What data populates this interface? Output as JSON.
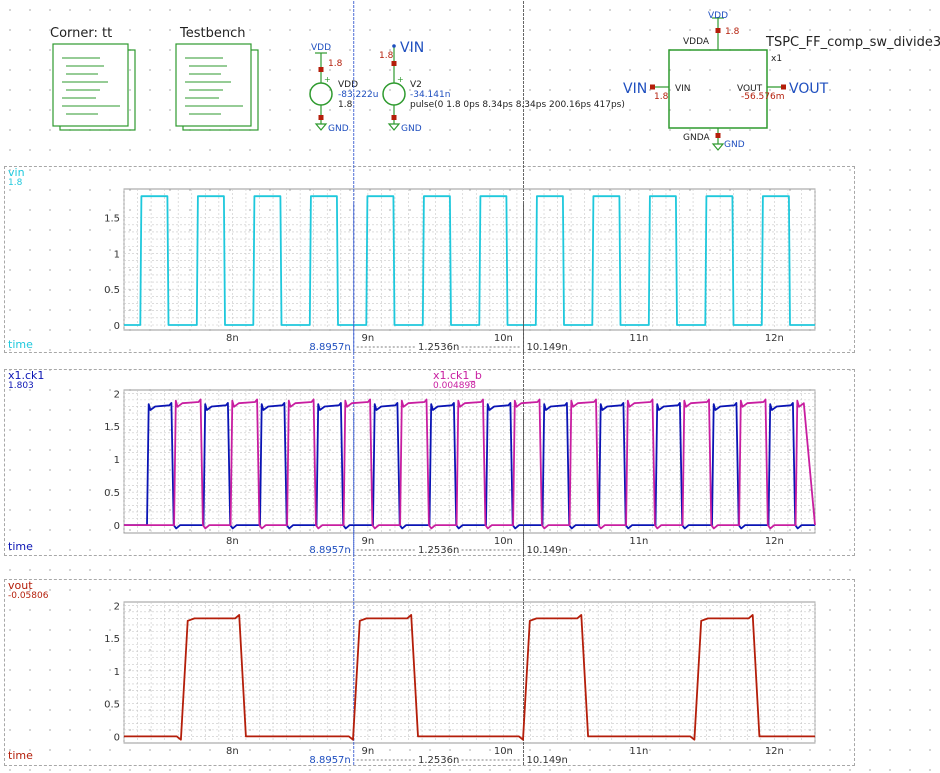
{
  "schematic": {
    "corner_label": "Corner: tt",
    "testbench_label": "Testbench",
    "vdd_source": {
      "net_top": "VDD",
      "value_top": "1.8",
      "name": "VDD",
      "current": "-83.222u",
      "voltage": "1.8",
      "net_bottom": "GND"
    },
    "vin_source": {
      "net_top": "VIN",
      "value_top": "1.8",
      "name": "V2",
      "current": "-34.141n",
      "spec": "pulse(0 1.8 0ps 8.34ps 8.34ps 200.16ps 417ps)",
      "net_bottom": "GND"
    },
    "subckt": {
      "name": "TSPC_FF_comp_sw_divide3",
      "instance": "x1",
      "pin_vdda": "VDDA",
      "pin_vin": "VIN",
      "pin_vout": "VOUT",
      "pin_gnda": "GNDA",
      "net_vdd": "VDD",
      "vdd_value": "1.8",
      "net_vin": "VIN",
      "vin_value": "1.8",
      "net_vout": "VOUT",
      "vout_value": "-56.576m",
      "net_gnd": "GND"
    }
  },
  "colors": {
    "vin": "#1ec8dc",
    "ck1": "#0a14b4",
    "ck1_b": "#c81ea0",
    "vout": "#b41e0a",
    "green": "#2e9a2e",
    "pin": "#b41e0a"
  },
  "cursors": {
    "c1": "8.8957n",
    "c2": "10.149n",
    "delta": "1.2536n"
  },
  "plots": [
    {
      "signals": [
        {
          "name": "vin",
          "value": "1.8",
          "color": "#1ec8dc"
        }
      ],
      "xlabel": "time",
      "xlabel_color": "#1ec8dc",
      "yticks": [
        "0",
        "0.5",
        "1",
        "1.5"
      ],
      "xticks": [
        "8n",
        "9n",
        "10n",
        "11n",
        "12n"
      ]
    },
    {
      "signals": [
        {
          "name": "x1.ck1",
          "value": "1.803",
          "color": "#0a14b4"
        },
        {
          "name": "x1.ck1_b",
          "value": "0.004898",
          "color": "#c81ea0"
        }
      ],
      "xlabel": "time",
      "xlabel_color": "#0a14b4",
      "yticks": [
        "0",
        "0.5",
        "1",
        "1.5",
        "2"
      ],
      "xticks": [
        "8n",
        "9n",
        "10n",
        "11n",
        "12n"
      ]
    },
    {
      "signals": [
        {
          "name": "vout",
          "value": "-0.05806",
          "color": "#b41e0a"
        }
      ],
      "xlabel": "time",
      "xlabel_color": "#b41e0a",
      "yticks": [
        "0",
        "0.5",
        "1",
        "1.5",
        "2"
      ],
      "xticks": [
        "8n",
        "9n",
        "10n",
        "11n",
        "12n"
      ]
    }
  ],
  "chart_data": [
    {
      "type": "line",
      "xunit": "ns",
      "xlim": [
        7.2,
        12.3
      ],
      "ylim": [
        -0.07,
        1.9
      ],
      "series": [
        {
          "name": "vin",
          "kind": "pulse",
          "low": 0,
          "high": 1.8,
          "period": 0.417,
          "first_rise": 7.32,
          "width": 0.2002,
          "edge": 0.00834
        }
      ]
    },
    {
      "type": "line",
      "xunit": "ns",
      "xlim": [
        7.2,
        12.3
      ],
      "ylim": [
        -0.12,
        2.05
      ],
      "series": [
        {
          "name": "x1.ck1",
          "kind": "clock",
          "low": 0,
          "high": 1.8,
          "period": 0.417,
          "first_rise": 7.37,
          "width": 0.185
        },
        {
          "name": "x1.ck1_b",
          "kind": "clock",
          "low": 0,
          "high": 1.85,
          "period": 0.417,
          "first_rise": 7.57,
          "width": 0.2
        }
      ]
    },
    {
      "type": "line",
      "xunit": "ns",
      "xlim": [
        7.2,
        12.3
      ],
      "ylim": [
        -0.1,
        2.05
      ],
      "series": [
        {
          "name": "vout",
          "kind": "pulses",
          "low": 0,
          "high": 1.8,
          "rises": [
            7.62,
            8.89,
            10.145,
            11.41
          ],
          "width": 0.45
        }
      ]
    }
  ]
}
